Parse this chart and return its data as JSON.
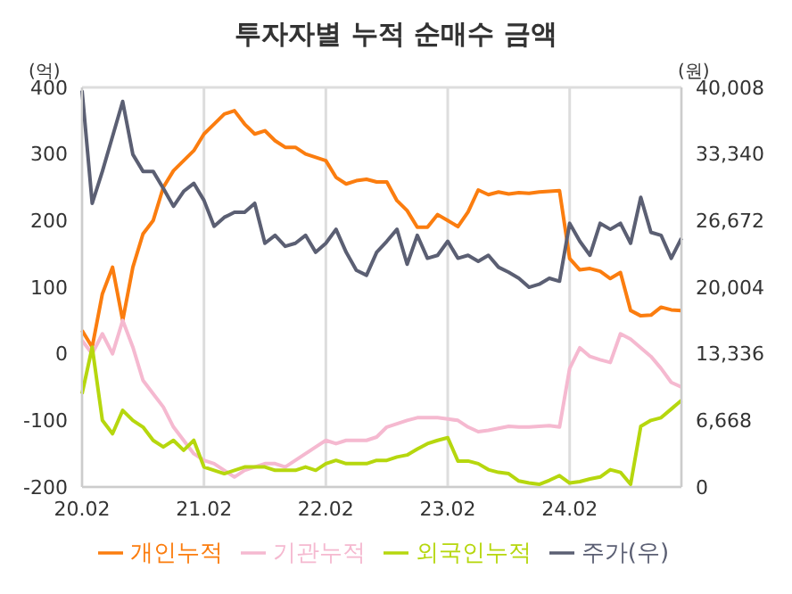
{
  "chart_data": {
    "type": "line",
    "title": "투자자별 누적 순매수 금액",
    "ylabel": "(억)",
    "y2label": "(원)",
    "categories": [
      "20.02",
      null,
      null,
      null,
      null,
      null,
      null,
      null,
      null,
      null,
      null,
      null,
      "21.02",
      null,
      null,
      null,
      null,
      null,
      null,
      null,
      null,
      null,
      null,
      null,
      "22.02",
      null,
      null,
      null,
      null,
      null,
      null,
      null,
      null,
      null,
      null,
      null,
      "23.02",
      null,
      null,
      null,
      null,
      null,
      null,
      null,
      null,
      null,
      null,
      null,
      "24.02",
      null,
      null,
      null,
      null,
      null,
      null,
      null,
      null,
      null,
      null,
      null
    ],
    "series": [
      {
        "name": "개인누적",
        "color": "#fb7d0f",
        "values": [
          35,
          10,
          90,
          130,
          50,
          130,
          180,
          200,
          250,
          275,
          290,
          305,
          330,
          345,
          360,
          365,
          345,
          330,
          335,
          320,
          310,
          310,
          300,
          295,
          290,
          265,
          255,
          260,
          262,
          258,
          258,
          230,
          215,
          190,
          190,
          209,
          200,
          191,
          213,
          246,
          239,
          243,
          240,
          242,
          241,
          243,
          244,
          245,
          143,
          126,
          128,
          124,
          113,
          122,
          65,
          57,
          58,
          70,
          66,
          65
        ]
      },
      {
        "name": "기관누적",
        "color": "#f5b9d0",
        "values": [
          20,
          0,
          30,
          0,
          50,
          10,
          -40,
          -60,
          -80,
          -110,
          -130,
          -150,
          -160,
          -165,
          -175,
          -185,
          -175,
          -170,
          -165,
          -165,
          -170,
          -160,
          -150,
          -140,
          -130,
          -135,
          -130,
          -130,
          -130,
          -125,
          -110,
          -105,
          -100,
          -96,
          -96,
          -96,
          -98,
          -100,
          -110,
          -117,
          -115,
          -112,
          -109,
          -110,
          -110,
          -109,
          -108,
          -110,
          -22,
          9,
          -4,
          -9,
          -13,
          30,
          22,
          9,
          -4,
          -22,
          -43,
          -50
        ]
      },
      {
        "name": "외국인누적",
        "color": "#b6d70e",
        "values": [
          -60,
          10,
          -100,
          -120,
          -85,
          -100,
          -110,
          -130,
          -140,
          -130,
          -145,
          -130,
          -170,
          -175,
          -180,
          -175,
          -170,
          -170,
          -170,
          -175,
          -175,
          -175,
          -170,
          -175,
          -165,
          -160,
          -165,
          -165,
          -165,
          -160,
          -160,
          -155,
          -152,
          -143,
          -135,
          -130,
          -126,
          -161,
          -161,
          -165,
          -174,
          -178,
          -180,
          -191,
          -194,
          -196,
          -190,
          -183,
          -194,
          -192,
          -188,
          -185,
          -174,
          -178,
          -196,
          -109,
          -100,
          -96,
          -83,
          -70
        ]
      },
      {
        "name": "주가(우)",
        "color": "#5b5f73",
        "axis": "y2",
        "values": [
          39700,
          28400,
          31600,
          35100,
          38600,
          33300,
          31600,
          31600,
          29900,
          28100,
          29600,
          30400,
          28700,
          26100,
          27000,
          27500,
          27500,
          28400,
          24400,
          25200,
          24100,
          24400,
          25200,
          23500,
          24400,
          25800,
          23500,
          21700,
          21200,
          23500,
          24600,
          25800,
          22300,
          25200,
          22900,
          23200,
          24600,
          22900,
          23200,
          22600,
          23200,
          22000,
          21500,
          20900,
          20000,
          20300,
          20900,
          20600,
          26400,
          24600,
          23200,
          26400,
          25800,
          26400,
          24400,
          29000,
          25500,
          25200,
          22900,
          24900
        ]
      }
    ],
    "ylim": [
      -200,
      400
    ],
    "yticks": [
      -200,
      -100,
      0,
      100,
      200,
      300,
      400
    ],
    "y2lim": [
      0,
      40008
    ],
    "y2ticks": [
      0,
      {
        "value": 6668,
        "label": "6,668"
      },
      {
        "value": 13336,
        "label": "13,336"
      },
      {
        "value": 20004,
        "label": "20,004"
      },
      {
        "value": 26672,
        "label": "26,672"
      },
      {
        "value": 33340,
        "label": "33,340"
      },
      {
        "value": 40008,
        "label": "40,008"
      }
    ],
    "grid": true,
    "legend": "bottom",
    "line_style": "solid"
  }
}
